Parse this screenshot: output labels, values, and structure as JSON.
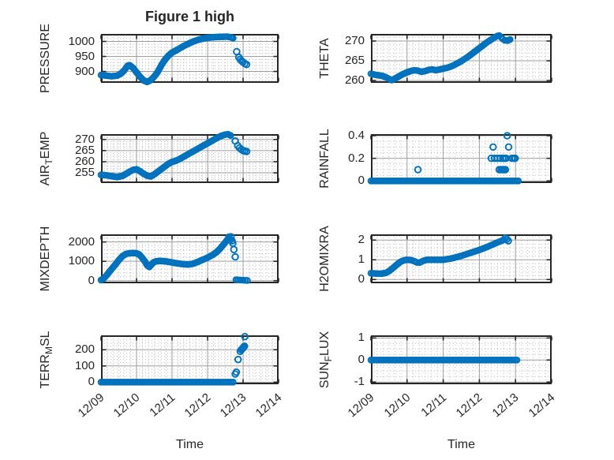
{
  "figure": {
    "title": "Figure 1 high",
    "xlabel": "Time",
    "marker_color": "#0072BD",
    "axis_color": "#262626",
    "grid_color": "#9e9e9e",
    "minor_grid_color": "#bdbdbd",
    "background": "#ffffff",
    "xlim": [
      0,
      5
    ],
    "xticks": [
      0,
      1,
      2,
      3,
      4,
      5
    ],
    "xminor": 0.1667,
    "xtick_labels": [
      "12/09",
      "12/10",
      "12/11",
      "12/12",
      "12/13",
      "12/14"
    ]
  },
  "chart_data": [
    {
      "id": "pressure",
      "type": "scatter",
      "row": 0,
      "col": 0,
      "ylabel": [
        {
          "t": "PRESSURE"
        }
      ],
      "yticks": [
        900,
        950,
        1000
      ],
      "ytick_labels": [
        "900",
        "950",
        "1000"
      ],
      "ylim": [
        862,
        1025
      ],
      "yminor": 10,
      "segments": [
        [
          [
            0,
            888
          ],
          [
            0.15,
            886
          ],
          [
            0.3,
            884
          ],
          [
            0.45,
            886
          ],
          [
            0.55,
            892
          ],
          [
            0.65,
            903
          ],
          [
            0.75,
            919
          ],
          [
            0.8,
            921
          ],
          [
            0.9,
            912
          ],
          [
            1.0,
            897
          ],
          [
            1.1,
            882
          ],
          [
            1.2,
            870
          ],
          [
            1.3,
            865
          ],
          [
            1.4,
            871
          ],
          [
            1.5,
            883
          ],
          [
            1.6,
            899
          ],
          [
            1.7,
            921
          ],
          [
            1.8,
            939
          ],
          [
            1.9,
            953
          ],
          [
            2.0,
            963
          ],
          [
            2.1,
            969
          ],
          [
            2.2,
            976
          ],
          [
            2.3,
            983
          ],
          [
            2.45,
            992
          ],
          [
            2.6,
            1000
          ],
          [
            2.75,
            1006
          ],
          [
            2.9,
            1010
          ],
          [
            3.05,
            1013
          ],
          [
            3.3,
            1015
          ],
          [
            3.55,
            1016
          ],
          [
            3.65,
            1014
          ],
          [
            3.72,
            1011
          ]
        ]
      ],
      "points": [
        [
          3.82,
          966
        ],
        [
          3.88,
          947
        ],
        [
          3.92,
          940
        ],
        [
          3.96,
          935
        ],
        [
          4.0,
          931
        ],
        [
          4.05,
          926
        ],
        [
          4.1,
          923
        ]
      ]
    },
    {
      "id": "theta",
      "type": "scatter",
      "row": 0,
      "col": 1,
      "ylabel": [
        {
          "t": "THETA"
        }
      ],
      "yticks": [
        260,
        265,
        270
      ],
      "ytick_labels": [
        "260",
        "265",
        "270"
      ],
      "ylim": [
        259.4,
        271.8
      ],
      "yminor": 1,
      "segments": [
        [
          [
            0,
            261.7
          ],
          [
            0.15,
            261.4
          ],
          [
            0.3,
            261.2
          ],
          [
            0.4,
            260.9
          ],
          [
            0.5,
            260.4
          ],
          [
            0.57,
            260.1
          ],
          [
            0.65,
            260.4
          ],
          [
            0.8,
            261.2
          ],
          [
            0.95,
            261.9
          ],
          [
            1.1,
            262.4
          ],
          [
            1.2,
            262.6
          ],
          [
            1.3,
            262.5
          ],
          [
            1.4,
            262.2
          ],
          [
            1.5,
            262.4
          ],
          [
            1.6,
            262.7
          ],
          [
            1.7,
            262.8
          ],
          [
            1.8,
            262.6
          ],
          [
            1.9,
            262.8
          ],
          [
            2.0,
            263.0
          ],
          [
            2.1,
            263.2
          ],
          [
            2.2,
            263.5
          ],
          [
            2.3,
            263.9
          ],
          [
            2.4,
            264.4
          ],
          [
            2.5,
            264.9
          ],
          [
            2.6,
            265.5
          ],
          [
            2.7,
            266.1
          ],
          [
            2.8,
            266.8
          ],
          [
            2.9,
            267.5
          ],
          [
            3.0,
            268.2
          ],
          [
            3.1,
            268.9
          ],
          [
            3.2,
            269.6
          ],
          [
            3.3,
            270.2
          ],
          [
            3.4,
            270.8
          ],
          [
            3.5,
            271.3
          ],
          [
            3.55,
            271.4
          ],
          [
            3.6,
            271.0
          ],
          [
            3.65,
            270.5
          ],
          [
            3.7,
            270.2
          ],
          [
            3.78,
            270.1
          ],
          [
            3.85,
            270.4
          ]
        ]
      ],
      "points": []
    },
    {
      "id": "air_temp",
      "type": "scatter",
      "row": 1,
      "col": 0,
      "ylabel": [
        {
          "t": "AIR"
        },
        {
          "t": "T",
          "sub": true
        },
        {
          "t": "EMP"
        }
      ],
      "yticks": [
        255,
        260,
        265,
        270
      ],
      "ytick_labels": [
        "255",
        "260",
        "265",
        "270"
      ],
      "ylim": [
        250.4,
        272.4
      ],
      "yminor": 1,
      "segments": [
        [
          [
            0,
            254.1
          ],
          [
            0.15,
            253.9
          ],
          [
            0.3,
            253.5
          ],
          [
            0.45,
            253.1
          ],
          [
            0.6,
            253.6
          ],
          [
            0.7,
            254.5
          ],
          [
            0.8,
            255.5
          ],
          [
            0.9,
            256.3
          ],
          [
            1.0,
            256.6
          ],
          [
            1.1,
            255.7
          ],
          [
            1.2,
            254.6
          ],
          [
            1.3,
            253.7
          ],
          [
            1.4,
            253.4
          ],
          [
            1.5,
            254.3
          ],
          [
            1.6,
            255.5
          ],
          [
            1.7,
            256.7
          ],
          [
            1.8,
            257.9
          ],
          [
            1.9,
            259.1
          ],
          [
            2.0,
            259.9
          ],
          [
            2.1,
            260.4
          ],
          [
            2.2,
            261.1
          ],
          [
            2.3,
            262.0
          ],
          [
            2.4,
            262.9
          ],
          [
            2.5,
            263.8
          ],
          [
            2.6,
            264.7
          ],
          [
            2.7,
            265.6
          ],
          [
            2.8,
            266.5
          ],
          [
            2.9,
            267.4
          ],
          [
            3.0,
            268.3
          ],
          [
            3.1,
            269.2
          ],
          [
            3.2,
            270.1
          ],
          [
            3.3,
            271.0
          ],
          [
            3.4,
            271.7
          ],
          [
            3.5,
            272.2
          ],
          [
            3.57,
            272.4
          ],
          [
            3.65,
            271.8
          ]
        ]
      ],
      "points": [
        [
          3.78,
          269.3
        ],
        [
          3.85,
          267.2
        ],
        [
          3.9,
          266.2
        ],
        [
          3.95,
          265.5
        ],
        [
          4.0,
          265.0
        ],
        [
          4.05,
          264.8
        ],
        [
          4.1,
          264.6
        ]
      ]
    },
    {
      "id": "rainfall",
      "type": "scatter",
      "row": 1,
      "col": 1,
      "ylabel": [
        {
          "t": "RAINFALL"
        }
      ],
      "yticks": [
        0,
        0.2,
        0.4
      ],
      "ytick_labels": [
        "0",
        "0.2",
        "0.4"
      ],
      "ylim": [
        -0.019,
        0.414
      ],
      "yminor": 0.05,
      "segments": [
        [
          [
            0,
            0
          ],
          [
            4.08,
            0
          ]
        ]
      ],
      "points": [
        [
          1.3,
          0.1
        ],
        [
          3.38,
          0.3
        ],
        [
          3.81,
          0.3
        ],
        [
          3.77,
          0.4
        ],
        [
          3.33,
          0.2
        ],
        [
          3.42,
          0.2
        ],
        [
          3.5,
          0.2
        ],
        [
          3.58,
          0.2
        ],
        [
          3.65,
          0.2
        ],
        [
          3.7,
          0.2
        ],
        [
          3.74,
          0.2
        ],
        [
          3.9,
          0.2
        ],
        [
          3.95,
          0.2
        ],
        [
          3.99,
          0.2
        ],
        [
          3.55,
          0.1
        ],
        [
          3.6,
          0.1
        ],
        [
          3.64,
          0.1
        ],
        [
          3.68,
          0.1
        ],
        [
          3.72,
          0.1
        ]
      ]
    },
    {
      "id": "mixdepth",
      "type": "scatter",
      "row": 2,
      "col": 0,
      "ylabel": [
        {
          "t": "MIXDEPTH"
        }
      ],
      "yticks": [
        0,
        1000,
        2000
      ],
      "ytick_labels": [
        "0",
        "1000",
        "2000"
      ],
      "ylim": [
        -135,
        2395
      ],
      "yminor": 200,
      "segments": [
        [
          [
            0,
            30
          ],
          [
            0.08,
            120
          ],
          [
            0.16,
            280
          ],
          [
            0.24,
            470
          ],
          [
            0.32,
            650
          ],
          [
            0.4,
            820
          ],
          [
            0.5,
            1060
          ],
          [
            0.6,
            1260
          ],
          [
            0.7,
            1380
          ],
          [
            0.8,
            1420
          ],
          [
            0.9,
            1430
          ],
          [
            1.0,
            1415
          ],
          [
            1.08,
            1350
          ],
          [
            1.16,
            1180
          ],
          [
            1.24,
            980
          ],
          [
            1.3,
            790
          ],
          [
            1.36,
            710
          ],
          [
            1.42,
            830
          ],
          [
            1.48,
            950
          ],
          [
            1.55,
            1000
          ],
          [
            1.65,
            1020
          ],
          [
            1.75,
            1010
          ],
          [
            1.85,
            990
          ],
          [
            1.95,
            960
          ],
          [
            2.05,
            925
          ],
          [
            2.15,
            895
          ],
          [
            2.25,
            868
          ],
          [
            2.35,
            845
          ],
          [
            2.45,
            838
          ],
          [
            2.55,
            860
          ],
          [
            2.65,
            915
          ],
          [
            2.75,
            990
          ],
          [
            2.85,
            1070
          ],
          [
            2.95,
            1150
          ],
          [
            3.05,
            1240
          ],
          [
            3.15,
            1340
          ],
          [
            3.25,
            1470
          ],
          [
            3.35,
            1650
          ],
          [
            3.45,
            1870
          ],
          [
            3.52,
            2030
          ],
          [
            3.58,
            2140
          ],
          [
            3.62,
            2200
          ]
        ],
        [
          [
            3.8,
            45
          ],
          [
            3.95,
            28
          ],
          [
            4.12,
            12
          ]
        ]
      ],
      "points": [
        [
          3.6,
          2250
        ],
        [
          3.66,
          2270
        ],
        [
          3.64,
          2120
        ],
        [
          3.69,
          2060
        ],
        [
          3.71,
          1930
        ],
        [
          3.74,
          1610
        ],
        [
          3.78,
          1230
        ]
      ]
    },
    {
      "id": "h2omixra",
      "type": "scatter",
      "row": 2,
      "col": 1,
      "ylabel": [
        {
          "t": "H2OMIXRA"
        }
      ],
      "yticks": [
        0,
        1,
        2
      ],
      "ytick_labels": [
        "0",
        "1",
        "2"
      ],
      "ylim": [
        -0.19,
        2.29
      ],
      "yminor": 0.2,
      "segments": [
        [
          [
            0,
            0.32
          ],
          [
            0.15,
            0.3
          ],
          [
            0.3,
            0.3
          ],
          [
            0.42,
            0.34
          ],
          [
            0.52,
            0.45
          ],
          [
            0.62,
            0.6
          ],
          [
            0.72,
            0.76
          ],
          [
            0.82,
            0.9
          ],
          [
            0.92,
            0.98
          ],
          [
            1.0,
            1.0
          ],
          [
            1.1,
            0.99
          ],
          [
            1.2,
            0.93
          ],
          [
            1.28,
            0.86
          ],
          [
            1.35,
            0.86
          ],
          [
            1.45,
            0.95
          ],
          [
            1.55,
            1.0
          ],
          [
            1.7,
            1.0
          ],
          [
            1.85,
            1.0
          ],
          [
            2.0,
            1.0
          ],
          [
            2.1,
            1.03
          ],
          [
            2.2,
            1.06
          ],
          [
            2.3,
            1.1
          ],
          [
            2.4,
            1.15
          ],
          [
            2.5,
            1.2
          ],
          [
            2.6,
            1.26
          ],
          [
            2.7,
            1.32
          ],
          [
            2.8,
            1.38
          ],
          [
            2.9,
            1.44
          ],
          [
            3.0,
            1.5
          ],
          [
            3.1,
            1.57
          ],
          [
            3.2,
            1.64
          ],
          [
            3.3,
            1.72
          ],
          [
            3.4,
            1.8
          ],
          [
            3.5,
            1.88
          ],
          [
            3.6,
            1.95
          ],
          [
            3.68,
            2.02
          ]
        ]
      ],
      "points": [
        [
          3.72,
          2.1
        ],
        [
          3.76,
          2.04
        ],
        [
          3.8,
          1.96
        ]
      ]
    },
    {
      "id": "terr_msl",
      "type": "scatter",
      "row": 3,
      "col": 0,
      "ylabel": [
        {
          "t": "TERR"
        },
        {
          "t": "M",
          "sub": true
        },
        {
          "t": "SL"
        }
      ],
      "yticks": [
        0,
        100,
        200
      ],
      "ytick_labels": [
        "0",
        "100",
        "200"
      ],
      "ylim": [
        -13,
        289
      ],
      "yminor": 20,
      "segments": [
        [
          [
            0,
            0
          ],
          [
            3.72,
            0
          ]
        ]
      ],
      "points": [
        [
          3.78,
          50
        ],
        [
          3.81,
          62
        ],
        [
          3.86,
          140
        ],
        [
          3.92,
          190
        ],
        [
          3.95,
          200
        ],
        [
          3.98,
          206
        ],
        [
          4.0,
          212
        ],
        [
          4.02,
          218
        ],
        [
          4.04,
          222
        ],
        [
          4.05,
          281
        ]
      ]
    },
    {
      "id": "sun_flux",
      "type": "scatter",
      "row": 3,
      "col": 1,
      "ylabel": [
        {
          "t": "SUN"
        },
        {
          "t": "F",
          "sub": true
        },
        {
          "t": "LUX"
        }
      ],
      "yticks": [
        -1,
        0,
        1
      ],
      "ytick_labels": [
        "-1",
        "0",
        "1"
      ],
      "ylim": [
        -1.1,
        1.12
      ],
      "yminor": 0.25,
      "segments": [
        [
          [
            0,
            0
          ],
          [
            4.04,
            0
          ]
        ]
      ],
      "points": []
    }
  ]
}
